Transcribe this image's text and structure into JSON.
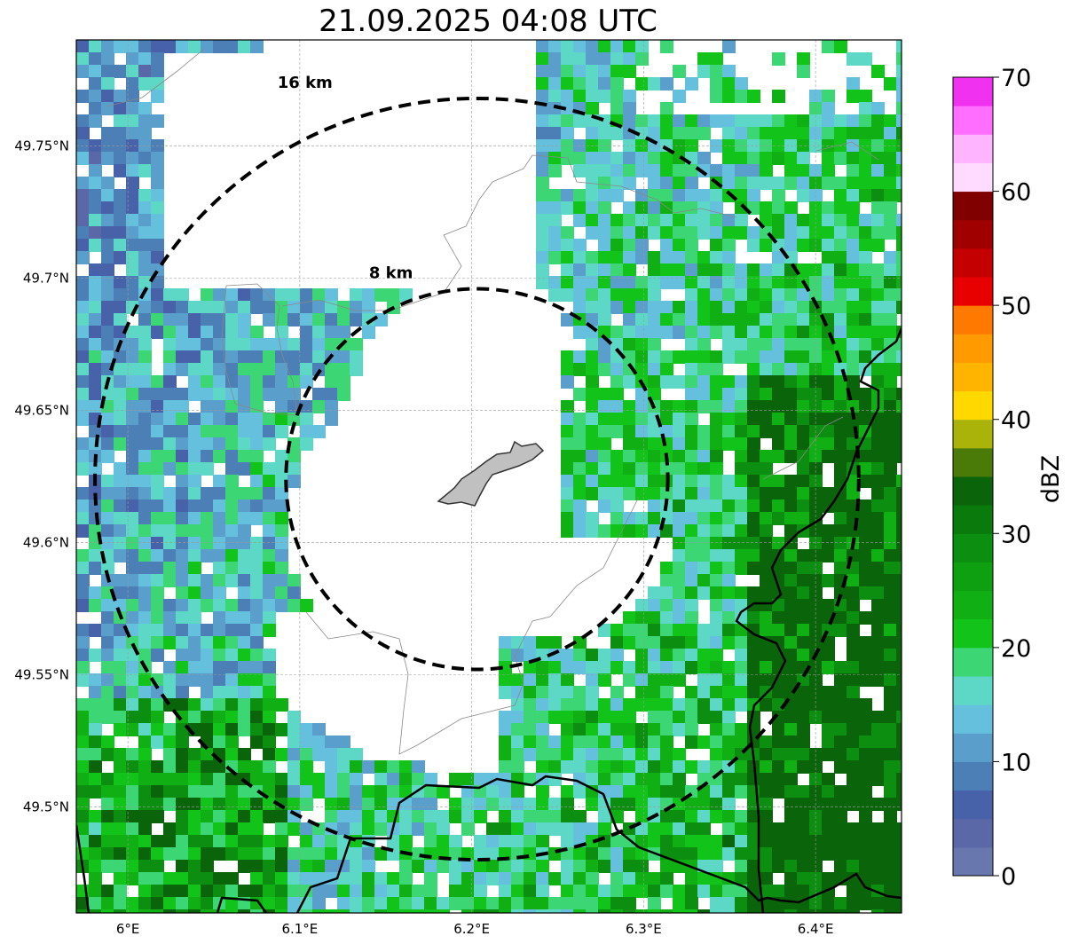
{
  "title": "21.09.2025 04:08 UTC",
  "map": {
    "lon_range": [
      5.97,
      6.45
    ],
    "lat_range": [
      49.46,
      49.79
    ],
    "center": {
      "lon": 6.203,
      "lat": 49.624
    },
    "lat_ticks": [
      {
        "value": 49.75,
        "label": "49.75°N"
      },
      {
        "value": 49.7,
        "label": "49.7°N"
      },
      {
        "value": 49.65,
        "label": "49.65°N"
      },
      {
        "value": 49.6,
        "label": "49.6°N"
      },
      {
        "value": 49.55,
        "label": "49.55°N"
      },
      {
        "value": 49.5,
        "label": "49.5°N"
      }
    ],
    "lon_ticks": [
      {
        "value": 6.0,
        "label": "6°E"
      },
      {
        "value": 6.1,
        "label": "6.1°E"
      },
      {
        "value": 6.2,
        "label": "6.2°E"
      },
      {
        "value": 6.3,
        "label": "6.3°E"
      },
      {
        "value": 6.4,
        "label": "6.4°E"
      }
    ],
    "range_rings": [
      {
        "km": 8,
        "label": "8 km"
      },
      {
        "km": 16,
        "label": "16 km"
      }
    ]
  },
  "colorbar": {
    "label": "dBZ",
    "min": 0,
    "max": 70,
    "ticks": [
      {
        "value": 0,
        "label": "0"
      },
      {
        "value": 10,
        "label": "10"
      },
      {
        "value": 20,
        "label": "20"
      },
      {
        "value": 30,
        "label": "30"
      },
      {
        "value": 40,
        "label": "40"
      },
      {
        "value": 50,
        "label": "50"
      },
      {
        "value": 60,
        "label": "60"
      },
      {
        "value": 70,
        "label": "70"
      }
    ],
    "colors": [
      "#6877ad",
      "#5a68a8",
      "#4862aa",
      "#4c7fb6",
      "#5a9fcc",
      "#64c0dc",
      "#5ed8c6",
      "#3cd674",
      "#12c41a",
      "#10b014",
      "#0fa012",
      "#0c8e10",
      "#0a7a0c",
      "#0a640a",
      "#4a7a08",
      "#aab30a",
      "#ffd800",
      "#ffb400",
      "#ff9a00",
      "#ff7800",
      "#e80000",
      "#c40000",
      "#a00000",
      "#800000",
      "#ffdcff",
      "#ffb4ff",
      "#ff6eff",
      "#f032f0"
    ]
  }
}
